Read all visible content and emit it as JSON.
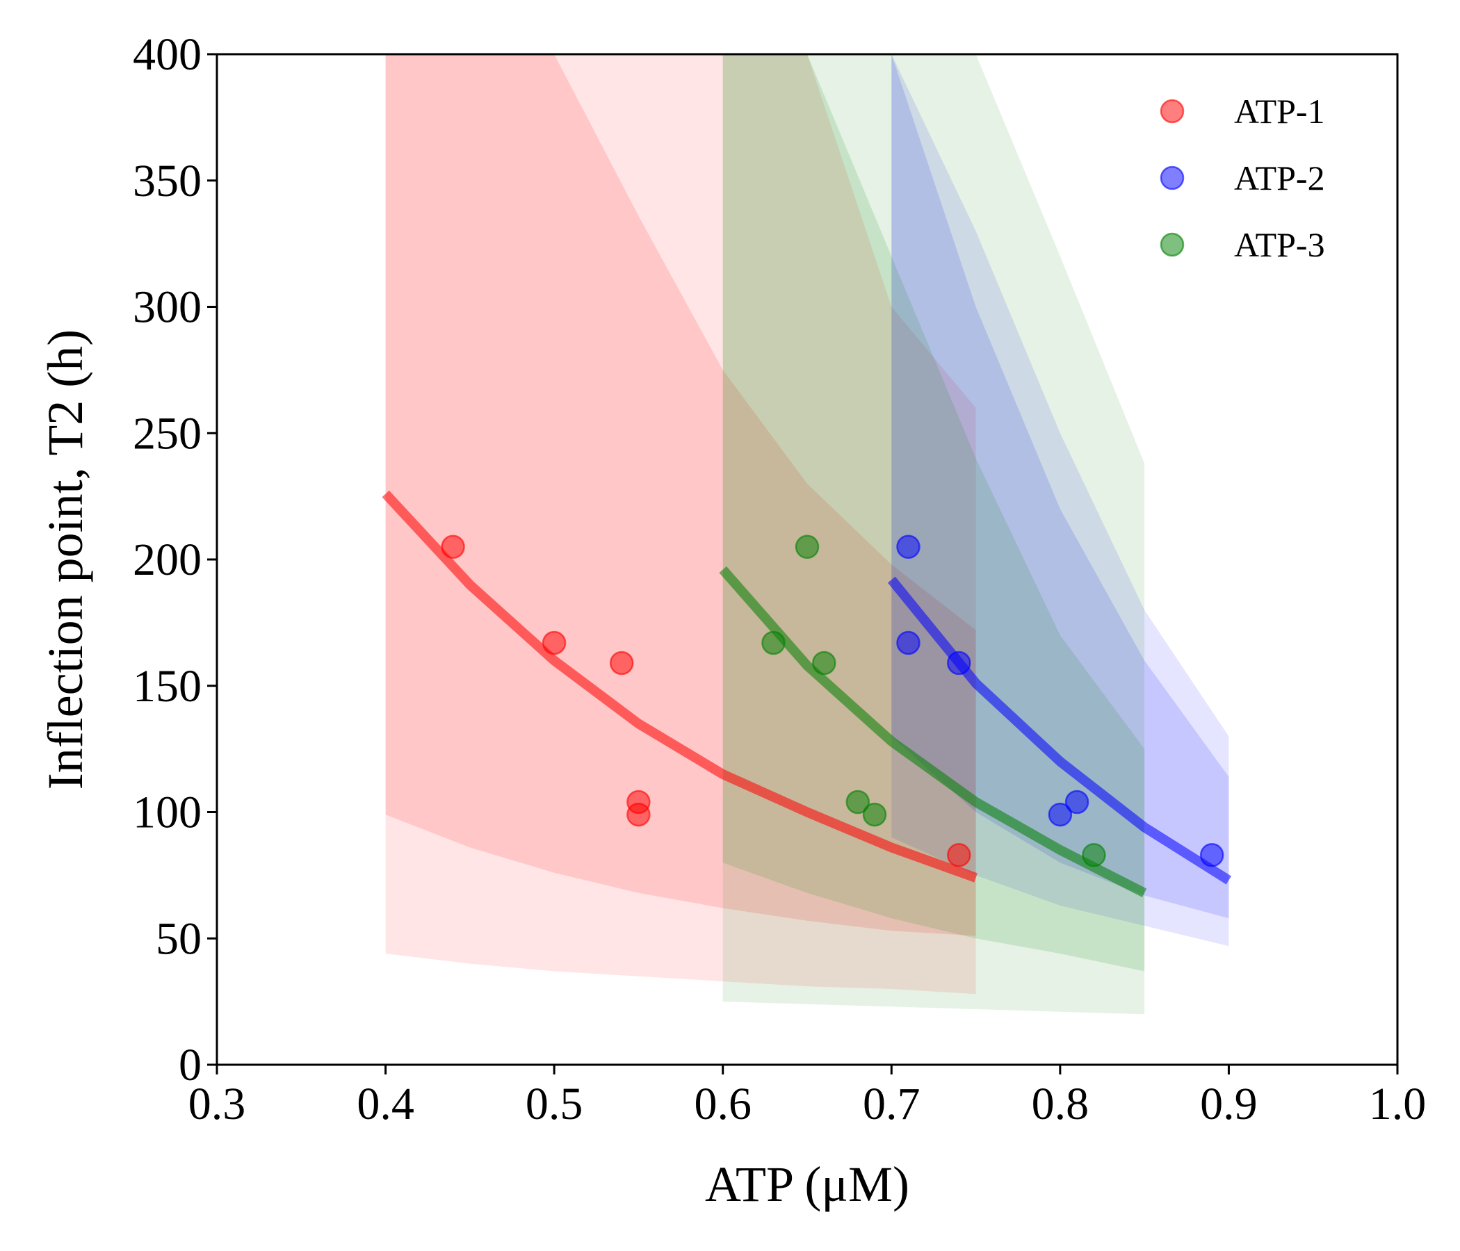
{
  "chart_data": {
    "type": "scatter",
    "xlabel": "ATP (μM)",
    "ylabel": "Inflection point, T2 (h)",
    "xlim": [
      0.3,
      1.0
    ],
    "ylim": [
      0,
      400
    ],
    "xticks": [
      0.3,
      0.4,
      0.5,
      0.6,
      0.7,
      0.8,
      0.9,
      1.0
    ],
    "xtick_labels": [
      "0.3",
      "0.4",
      "0.5",
      "0.6",
      "0.7",
      "0.8",
      "0.9",
      "1.0"
    ],
    "yticks": [
      0,
      50,
      100,
      150,
      200,
      250,
      300,
      350,
      400
    ],
    "ytick_labels": [
      "0",
      "50",
      "100",
      "150",
      "200",
      "250",
      "300",
      "350",
      "400"
    ],
    "grid": false,
    "legend": "top-right",
    "series": [
      {
        "name": "ATP-1",
        "color": "#ff0000",
        "points": [
          [
            0.44,
            205
          ],
          [
            0.5,
            167
          ],
          [
            0.54,
            159
          ],
          [
            0.55,
            104
          ],
          [
            0.55,
            99
          ],
          [
            0.74,
            83
          ]
        ],
        "fit": [
          [
            0.4,
            226
          ],
          [
            0.45,
            190
          ],
          [
            0.5,
            160
          ],
          [
            0.55,
            135
          ],
          [
            0.6,
            115
          ],
          [
            0.65,
            100
          ],
          [
            0.7,
            86
          ],
          [
            0.75,
            74
          ]
        ],
        "band_inner": {
          "x": [
            0.4,
            0.45,
            0.5,
            0.55,
            0.6,
            0.65,
            0.7,
            0.75
          ],
          "upper": [
            400,
            400,
            400,
            336,
            275,
            230,
            198,
            172
          ],
          "lower": [
            99,
            86,
            76,
            68,
            62,
            57,
            53,
            51
          ]
        },
        "band_outer": {
          "x": [
            0.4,
            0.45,
            0.5,
            0.55,
            0.6,
            0.65,
            0.7,
            0.75
          ],
          "upper": [
            400,
            400,
            400,
            400,
            400,
            400,
            300,
            260
          ],
          "lower": [
            44,
            40,
            37,
            35,
            33,
            31,
            30,
            28
          ]
        }
      },
      {
        "name": "ATP-2",
        "color": "#0000ff",
        "points": [
          [
            0.71,
            205
          ],
          [
            0.71,
            167
          ],
          [
            0.74,
            159
          ],
          [
            0.8,
            99
          ],
          [
            0.81,
            104
          ],
          [
            0.89,
            83
          ]
        ],
        "fit": [
          [
            0.7,
            192
          ],
          [
            0.75,
            151
          ],
          [
            0.8,
            120
          ],
          [
            0.85,
            94
          ],
          [
            0.9,
            73
          ]
        ],
        "band_inner": {
          "x": [
            0.7,
            0.75,
            0.8,
            0.85,
            0.9
          ],
          "upper": [
            400,
            300,
            220,
            160,
            114
          ],
          "lower": [
            130,
            100,
            80,
            67,
            58
          ]
        },
        "band_outer": {
          "x": [
            0.7,
            0.75,
            0.8,
            0.85,
            0.9
          ],
          "upper": [
            400,
            330,
            250,
            180,
            130
          ],
          "lower": [
            90,
            75,
            63,
            55,
            47
          ]
        }
      },
      {
        "name": "ATP-3",
        "color": "#008000",
        "points": [
          [
            0.63,
            167
          ],
          [
            0.65,
            205
          ],
          [
            0.66,
            159
          ],
          [
            0.68,
            104
          ],
          [
            0.69,
            99
          ],
          [
            0.82,
            83
          ]
        ],
        "fit": [
          [
            0.6,
            196
          ],
          [
            0.65,
            158
          ],
          [
            0.7,
            128
          ],
          [
            0.75,
            104
          ],
          [
            0.8,
            85
          ],
          [
            0.85,
            68
          ]
        ],
        "band_inner": {
          "x": [
            0.6,
            0.65,
            0.7,
            0.75,
            0.8,
            0.85
          ],
          "upper": [
            400,
            400,
            320,
            240,
            170,
            125
          ],
          "lower": [
            80,
            68,
            58,
            50,
            44,
            37
          ]
        },
        "band_outer": {
          "x": [
            0.6,
            0.65,
            0.7,
            0.75,
            0.8,
            0.85
          ],
          "upper": [
            400,
            400,
            400,
            400,
            320,
            238
          ],
          "lower": [
            25,
            24,
            23,
            22,
            21,
            20
          ]
        }
      }
    ]
  }
}
